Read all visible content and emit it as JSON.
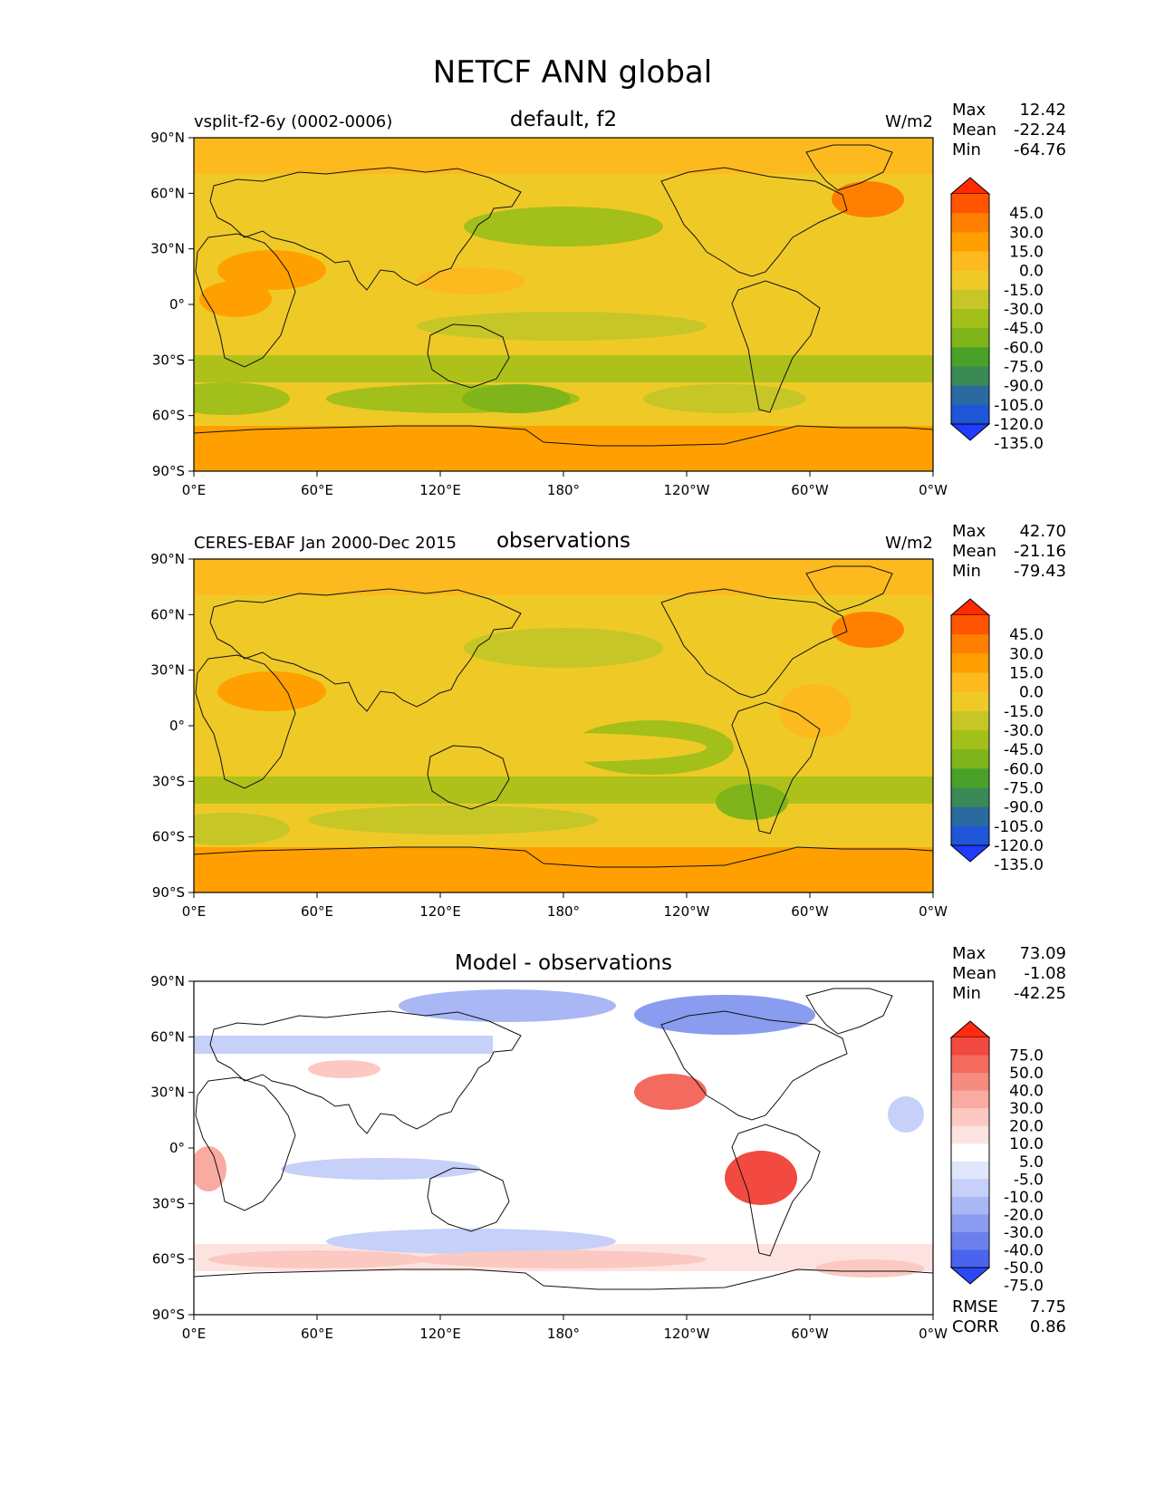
{
  "title": "NETCF ANN global",
  "panels": [
    {
      "id": "test",
      "left_label": "vsplit-f2-6y (0002-0006)",
      "center_label": "default, f2",
      "units": "W/m2",
      "stats": [
        {
          "label": "Max",
          "value": "12.42"
        },
        {
          "label": "Mean",
          "value": "-22.24"
        },
        {
          "label": "Min",
          "value": "-64.76"
        }
      ],
      "colorbar": {
        "levels": [
          "45.0",
          "30.0",
          "15.0",
          "0.0",
          "-15.0",
          "-30.0",
          "-45.0",
          "-60.0",
          "-75.0",
          "-90.0",
          "-105.0",
          "-120.0",
          "-135.0"
        ],
        "colors": [
          "#ff2a00",
          "#ff5500",
          "#ff8000",
          "#ffa000",
          "#fcba1f",
          "#efca27",
          "#c6c627",
          "#a2bf1a",
          "#7fb51a",
          "#4aa12a",
          "#3a8a55",
          "#2a6aa0",
          "#1f56d8",
          "#1f3cff"
        ]
      }
    },
    {
      "id": "reference",
      "left_label": "CERES-EBAF Jan 2000-Dec 2015",
      "center_label": "observations",
      "units": "W/m2",
      "stats": [
        {
          "label": "Max",
          "value": "42.70"
        },
        {
          "label": "Mean",
          "value": "-21.16"
        },
        {
          "label": "Min",
          "value": "-79.43"
        }
      ],
      "colorbar": {
        "levels": [
          "45.0",
          "30.0",
          "15.0",
          "0.0",
          "-15.0",
          "-30.0",
          "-45.0",
          "-60.0",
          "-75.0",
          "-90.0",
          "-105.0",
          "-120.0",
          "-135.0"
        ],
        "colors": [
          "#ff2a00",
          "#ff5500",
          "#ff8000",
          "#ffa000",
          "#fcba1f",
          "#efca27",
          "#c6c627",
          "#a2bf1a",
          "#7fb51a",
          "#4aa12a",
          "#3a8a55",
          "#2a6aa0",
          "#1f56d8",
          "#1f3cff"
        ]
      }
    },
    {
      "id": "difference",
      "left_label": "",
      "center_label": "Model - observations",
      "units": "",
      "stats": [
        {
          "label": "Max",
          "value": "73.09"
        },
        {
          "label": "Mean",
          "value": "-1.08"
        },
        {
          "label": "Min",
          "value": "-42.25"
        }
      ],
      "extra_stats": [
        {
          "label": "RMSE",
          "value": "7.75"
        },
        {
          "label": "CORR",
          "value": "0.86"
        }
      ],
      "colorbar": {
        "levels": [
          "75.0",
          "50.0",
          "40.0",
          "30.0",
          "20.0",
          "10.0",
          "5.0",
          "-5.0",
          "-10.0",
          "-20.0",
          "-30.0",
          "-40.0",
          "-50.0",
          "-75.0"
        ],
        "colors": [
          "#ff2a10",
          "#f24a40",
          "#f46a5e",
          "#f68b80",
          "#f9aba2",
          "#fbc9c2",
          "#fde3df",
          "#ffffff",
          "#e0e6fb",
          "#c6d0f8",
          "#a9b7f4",
          "#8a9cf0",
          "#6b80ec",
          "#4a64ee",
          "#2a48f5"
        ]
      }
    }
  ],
  "axes": {
    "x_ticks": [
      "0°E",
      "60°E",
      "120°E",
      "180°",
      "120°W",
      "60°W",
      "0°W"
    ],
    "y_ticks": [
      "90°N",
      "60°N",
      "30°N",
      "0°",
      "30°S",
      "60°S",
      "90°S"
    ]
  }
}
